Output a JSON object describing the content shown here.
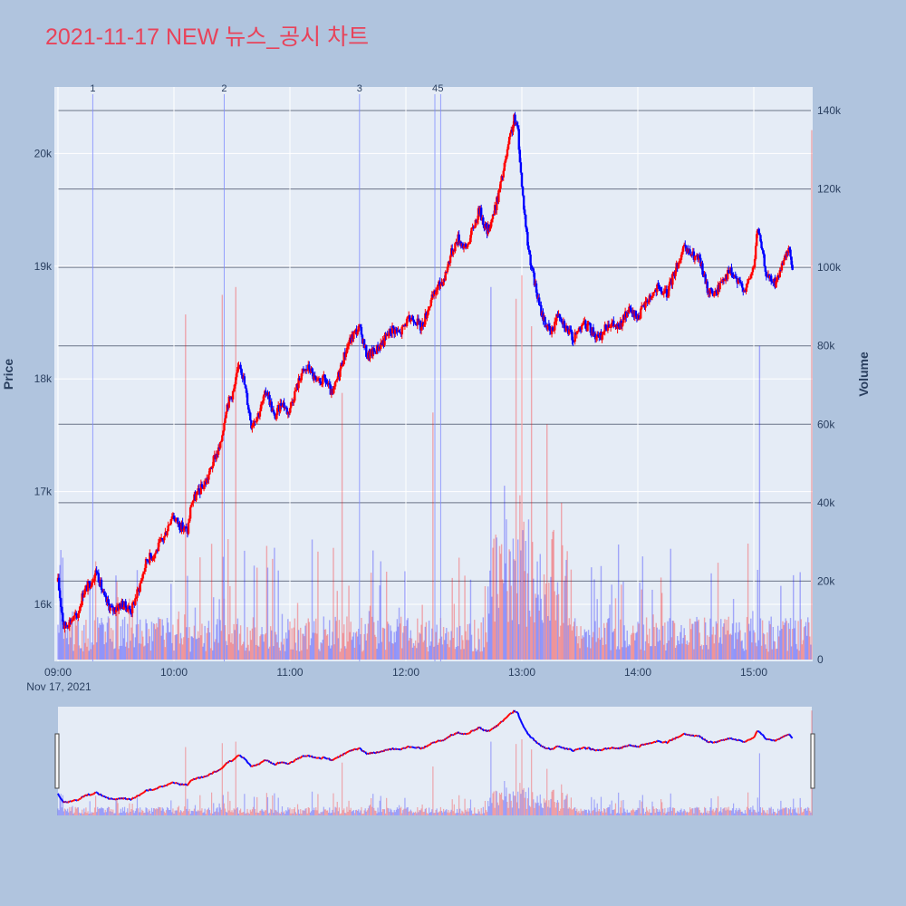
{
  "chart_data": {
    "type": "candlestick",
    "title": "2021-11-17 NEW 뉴스_공시 차트",
    "xlabel": "",
    "ylabel": "Price",
    "y2label": "Volume",
    "date_label": "Nov 17, 2021",
    "x_range": [
      "09:00",
      "15:30"
    ],
    "x_ticks": [
      "09:00",
      "10:00",
      "11:00",
      "12:00",
      "13:00",
      "14:00",
      "15:00"
    ],
    "price_range": [
      15500,
      20500
    ],
    "price_ticks": [
      16000,
      17000,
      18000,
      19000,
      20000
    ],
    "price_tick_labels": [
      "16k",
      "17k",
      "18k",
      "19k",
      "20k"
    ],
    "volume_range": [
      0,
      140000
    ],
    "volume_ticks": [
      0,
      20000,
      40000,
      60000,
      80000,
      100000,
      120000,
      140000
    ],
    "volume_tick_labels": [
      "0",
      "20k",
      "40k",
      "60k",
      "80k",
      "100k",
      "120k",
      "140k"
    ],
    "up_color": "#ff0000",
    "down_color": "#0000ff",
    "news_markers": [
      {
        "label": "1",
        "time": "09:18"
      },
      {
        "label": "2",
        "time": "10:26"
      },
      {
        "label": "3",
        "time": "11:36"
      },
      {
        "label": "4",
        "time": "12:15"
      },
      {
        "label": "5",
        "time": "12:18"
      }
    ],
    "price_path": [
      [
        "09:00",
        16200
      ],
      [
        "09:03",
        15800
      ],
      [
        "09:06",
        15850
      ],
      [
        "09:10",
        15900
      ],
      [
        "09:13",
        16100
      ],
      [
        "09:17",
        16200
      ],
      [
        "09:20",
        16300
      ],
      [
        "09:24",
        16050
      ],
      [
        "09:28",
        15950
      ],
      [
        "09:33",
        16000
      ],
      [
        "09:38",
        15950
      ],
      [
        "09:42",
        16150
      ],
      [
        "09:46",
        16400
      ],
      [
        "09:50",
        16450
      ],
      [
        "09:55",
        16600
      ],
      [
        "09:59",
        16800
      ],
      [
        "10:03",
        16700
      ],
      [
        "10:07",
        16650
      ],
      [
        "10:09",
        16900
      ],
      [
        "10:13",
        17000
      ],
      [
        "10:17",
        17100
      ],
      [
        "10:21",
        17300
      ],
      [
        "10:24",
        17400
      ],
      [
        "10:27",
        17750
      ],
      [
        "10:31",
        17900
      ],
      [
        "10:34",
        18150
      ],
      [
        "10:36",
        18000
      ],
      [
        "10:40",
        17600
      ],
      [
        "10:44",
        17700
      ],
      [
        "10:48",
        17900
      ],
      [
        "10:52",
        17650
      ],
      [
        "10:56",
        17800
      ],
      [
        "10:59",
        17700
      ],
      [
        "11:03",
        17900
      ],
      [
        "11:06",
        18050
      ],
      [
        "11:10",
        18100
      ],
      [
        "11:14",
        17950
      ],
      [
        "11:18",
        18000
      ],
      [
        "11:22",
        17850
      ],
      [
        "11:27",
        18150
      ],
      [
        "11:30",
        18300
      ],
      [
        "11:33",
        18400
      ],
      [
        "11:36",
        18450
      ],
      [
        "11:40",
        18200
      ],
      [
        "11:44",
        18250
      ],
      [
        "11:49",
        18350
      ],
      [
        "11:53",
        18450
      ],
      [
        "11:57",
        18400
      ],
      [
        "12:00",
        18500
      ],
      [
        "12:04",
        18550
      ],
      [
        "12:08",
        18450
      ],
      [
        "12:12",
        18650
      ],
      [
        "12:16",
        18800
      ],
      [
        "12:20",
        18900
      ],
      [
        "12:23",
        19100
      ],
      [
        "12:27",
        19250
      ],
      [
        "12:31",
        19150
      ],
      [
        "12:35",
        19350
      ],
      [
        "12:38",
        19500
      ],
      [
        "12:42",
        19300
      ],
      [
        "12:46",
        19500
      ],
      [
        "12:50",
        19800
      ],
      [
        "12:54",
        20150
      ],
      [
        "12:56",
        20300
      ],
      [
        "12:58",
        20200
      ],
      [
        "13:00",
        19700
      ],
      [
        "13:03",
        19200
      ],
      [
        "13:06",
        18900
      ],
      [
        "13:09",
        18650
      ],
      [
        "13:12",
        18500
      ],
      [
        "13:15",
        18400
      ],
      [
        "13:19",
        18600
      ],
      [
        "13:23",
        18450
      ],
      [
        "13:27",
        18350
      ],
      [
        "13:31",
        18500
      ],
      [
        "13:35",
        18450
      ],
      [
        "13:40",
        18350
      ],
      [
        "13:45",
        18500
      ],
      [
        "13:50",
        18450
      ],
      [
        "13:55",
        18600
      ],
      [
        "14:00",
        18550
      ],
      [
        "14:05",
        18700
      ],
      [
        "14:10",
        18800
      ],
      [
        "14:15",
        18750
      ],
      [
        "14:20",
        19000
      ],
      [
        "14:24",
        19150
      ],
      [
        "14:28",
        19100
      ],
      [
        "14:32",
        19050
      ],
      [
        "14:36",
        18800
      ],
      [
        "14:40",
        18750
      ],
      [
        "14:44",
        18900
      ],
      [
        "14:48",
        18950
      ],
      [
        "14:52",
        18850
      ],
      [
        "14:56",
        18800
      ],
      [
        "15:00",
        19000
      ],
      [
        "15:02",
        19350
      ],
      [
        "15:04",
        19150
      ],
      [
        "15:07",
        18900
      ],
      [
        "15:11",
        18850
      ],
      [
        "15:15",
        19000
      ],
      [
        "15:18",
        19150
      ],
      [
        "15:20",
        19000
      ]
    ],
    "volume_peaks": [
      [
        "10:06",
        88000
      ],
      [
        "10:25",
        93000
      ],
      [
        "10:32",
        95000
      ],
      [
        "11:27",
        68000
      ],
      [
        "12:14",
        63000
      ],
      [
        "12:44",
        95000
      ],
      [
        "12:57",
        92000
      ],
      [
        "13:00",
        98000
      ],
      [
        "13:05",
        85000
      ],
      [
        "15:03",
        80000
      ],
      [
        "15:30",
        135000
      ]
    ]
  }
}
